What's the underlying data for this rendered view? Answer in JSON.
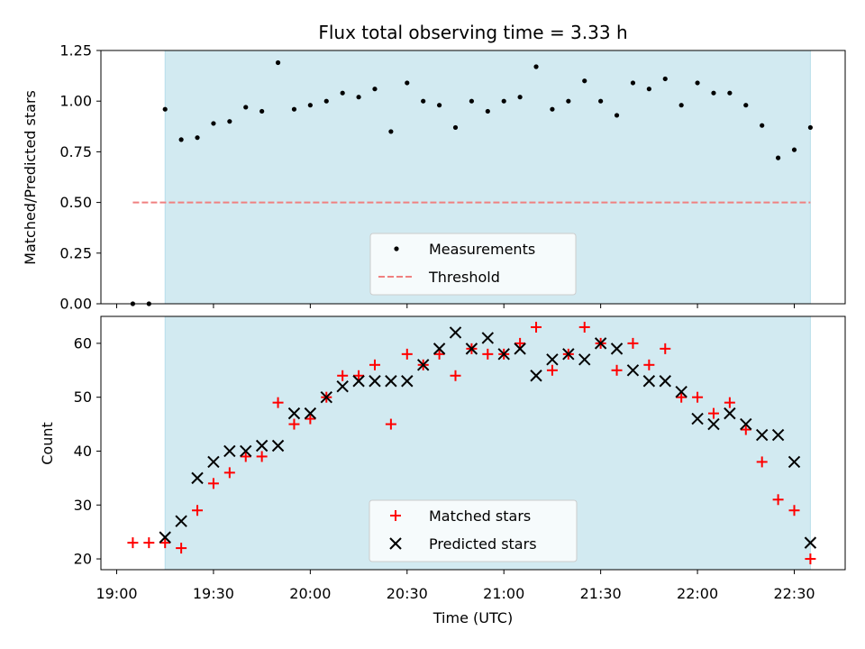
{
  "chart_data": [
    {
      "type": "scatter",
      "title": "Flux total observing time = 3.33 h",
      "ylabel": "Matched/Predicted stars",
      "xlabel": "",
      "ylim": [
        0,
        1.25
      ],
      "yticks": [
        "0.00",
        "0.25",
        "0.50",
        "0.75",
        "1.00",
        "1.25"
      ],
      "shaded_range": [
        "19:15",
        "22:35"
      ],
      "shade_color": "#add8e6",
      "legend": "bottom-center",
      "series": [
        {
          "name": "Measurements",
          "color": "#000000",
          "marker": "dot",
          "x": [
            "19:05",
            "19:10",
            "19:15",
            "19:20",
            "19:25",
            "19:30",
            "19:35",
            "19:40",
            "19:45",
            "19:50",
            "19:55",
            "20:00",
            "20:05",
            "20:10",
            "20:15",
            "20:20",
            "20:25",
            "20:30",
            "20:35",
            "20:40",
            "20:45",
            "20:50",
            "20:55",
            "21:00",
            "21:05",
            "21:10",
            "21:15",
            "21:20",
            "21:25",
            "21:30",
            "21:35",
            "21:40",
            "21:45",
            "21:50",
            "21:55",
            "22:00",
            "22:05",
            "22:10",
            "22:15",
            "22:20",
            "22:25",
            "22:30",
            "22:35"
          ],
          "y": [
            0.0,
            0.0,
            0.96,
            0.81,
            0.82,
            0.89,
            0.9,
            0.97,
            0.95,
            1.19,
            0.96,
            0.98,
            1.0,
            1.04,
            1.02,
            1.06,
            0.85,
            1.09,
            1.0,
            0.98,
            0.87,
            1.0,
            0.95,
            1.0,
            1.02,
            1.17,
            0.96,
            1.0,
            1.1,
            1.0,
            0.93,
            1.09,
            1.06,
            1.11,
            0.98,
            1.09,
            1.04,
            1.04,
            0.98,
            0.88,
            0.72,
            0.76,
            0.87
          ]
        },
        {
          "name": "Threshold",
          "color": "#f08080",
          "marker": "dashed-line",
          "x": [
            "19:05",
            "22:35"
          ],
          "y": [
            0.5,
            0.5
          ]
        }
      ]
    },
    {
      "type": "scatter",
      "title": "",
      "ylabel": "Count",
      "xlabel": "Time (UTC)",
      "ylim": [
        18,
        65
      ],
      "yticks": [
        "20",
        "30",
        "40",
        "50",
        "60"
      ],
      "xticks": [
        "19:00",
        "19:30",
        "20:00",
        "20:30",
        "21:00",
        "21:30",
        "22:00",
        "22:30"
      ],
      "shaded_range": [
        "19:15",
        "22:35"
      ],
      "shade_color": "#add8e6",
      "legend": "bottom-center",
      "series": [
        {
          "name": "Matched stars",
          "color": "#ff0000",
          "marker": "plus",
          "x": [
            "19:05",
            "19:10",
            "19:15",
            "19:20",
            "19:25",
            "19:30",
            "19:35",
            "19:40",
            "19:45",
            "19:50",
            "19:55",
            "20:00",
            "20:05",
            "20:10",
            "20:15",
            "20:20",
            "20:25",
            "20:30",
            "20:35",
            "20:40",
            "20:45",
            "20:50",
            "20:55",
            "21:00",
            "21:05",
            "21:10",
            "21:15",
            "21:20",
            "21:25",
            "21:30",
            "21:35",
            "21:40",
            "21:45",
            "21:50",
            "21:55",
            "22:00",
            "22:05",
            "22:10",
            "22:15",
            "22:20",
            "22:25",
            "22:30",
            "22:35"
          ],
          "y": [
            23,
            23,
            23,
            22,
            29,
            34,
            36,
            39,
            39,
            49,
            45,
            46,
            50,
            54,
            54,
            56,
            45,
            58,
            56,
            58,
            54,
            59,
            58,
            58,
            60,
            63,
            55,
            58,
            63,
            60,
            55,
            60,
            56,
            59,
            50,
            50,
            47,
            49,
            44,
            38,
            31,
            29,
            20
          ]
        },
        {
          "name": "Predicted stars",
          "color": "#000000",
          "marker": "x",
          "x": [
            "19:15",
            "19:20",
            "19:25",
            "19:30",
            "19:35",
            "19:40",
            "19:45",
            "19:50",
            "19:55",
            "20:00",
            "20:05",
            "20:10",
            "20:15",
            "20:20",
            "20:25",
            "20:30",
            "20:35",
            "20:40",
            "20:45",
            "20:50",
            "20:55",
            "21:00",
            "21:05",
            "21:10",
            "21:15",
            "21:20",
            "21:25",
            "21:30",
            "21:35",
            "21:40",
            "21:45",
            "21:50",
            "21:55",
            "22:00",
            "22:05",
            "22:10",
            "22:15",
            "22:20",
            "22:25",
            "22:30",
            "22:35"
          ],
          "y": [
            24,
            27,
            35,
            38,
            40,
            40,
            41,
            41,
            47,
            47,
            50,
            52,
            53,
            53,
            53,
            53,
            56,
            59,
            62,
            59,
            61,
            58,
            59,
            54,
            57,
            58,
            57,
            60,
            59,
            55,
            53,
            53,
            51,
            46,
            45,
            47,
            45,
            43,
            43,
            38,
            23
          ]
        }
      ]
    }
  ]
}
